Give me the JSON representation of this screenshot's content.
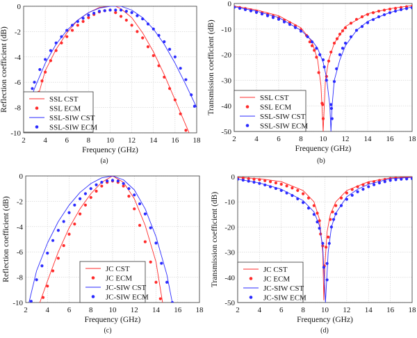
{
  "colors": {
    "red": "#ff2a2a",
    "blue": "#2a2aff",
    "grid": "#cfcfcf"
  },
  "chart_data": [
    {
      "type": "line",
      "caption": "(a)",
      "xlabel": "Frequency (GHz)",
      "ylabel": "Reflection coefficient (dB)",
      "xlim": [
        2,
        18
      ],
      "ylim": [
        -10,
        0
      ],
      "xticks": [
        2,
        4,
        6,
        8,
        10,
        12,
        14,
        16,
        18
      ],
      "yticks": [
        0,
        -2,
        -4,
        -6,
        -8,
        -10
      ],
      "grid": true,
      "legend": "bottom-left",
      "series": [
        {
          "name": "SSL CST",
          "style": "line",
          "color": "red",
          "x": [
            3.3,
            4,
            5,
            6,
            7,
            8,
            9,
            10,
            10.5,
            11,
            12,
            13,
            14,
            15,
            16,
            17,
            17.3
          ],
          "y": [
            -7.2,
            -5.1,
            -3.4,
            -2.1,
            -1.1,
            -0.5,
            -0.1,
            0,
            0,
            -0.2,
            -0.9,
            -2.1,
            -3.6,
            -5.4,
            -7.4,
            -9.4,
            -10
          ]
        },
        {
          "name": "SSL ECM",
          "style": "dots",
          "color": "red",
          "x": [
            3.4,
            3.7,
            4,
            4.5,
            5,
            5.5,
            6,
            6.5,
            7,
            7.5,
            8,
            8.5,
            9,
            9.5,
            10,
            10.5,
            11,
            11.5,
            12,
            12.5,
            13,
            13.5,
            14,
            14.5,
            15,
            15.5,
            16,
            16.5,
            17
          ],
          "y": [
            -6.8,
            -5.9,
            -5.2,
            -4.3,
            -3.5,
            -2.9,
            -2.4,
            -1.9,
            -1.5,
            -1.2,
            -0.9,
            -0.65,
            -0.45,
            -0.35,
            -0.3,
            -0.5,
            -0.8,
            -1.1,
            -1.5,
            -2.0,
            -2.5,
            -3.2,
            -3.9,
            -4.7,
            -5.6,
            -6.5,
            -7.4,
            -8.5,
            -9.8
          ]
        },
        {
          "name": "SSL-SIW CST",
          "style": "line",
          "color": "blue",
          "x": [
            2.8,
            3,
            4,
            5,
            6,
            7,
            8,
            9,
            10,
            11,
            12,
            13,
            14,
            15,
            16,
            17,
            18
          ],
          "y": [
            -7,
            -6.5,
            -4.5,
            -3.0,
            -1.9,
            -1.1,
            -0.5,
            -0.15,
            0,
            0,
            -0.3,
            -0.9,
            -1.8,
            -3.0,
            -4.5,
            -6.2,
            -8.0
          ]
        },
        {
          "name": "SSL-SIW ECM",
          "style": "dots",
          "color": "blue",
          "x": [
            2,
            2.8,
            3,
            3.5,
            4,
            4.5,
            5,
            5.5,
            6,
            6.5,
            7,
            7.5,
            8,
            8.5,
            9,
            9.5,
            10,
            10.5,
            11,
            11.5,
            12,
            12.5,
            13,
            13.5,
            14,
            14.5,
            15,
            15.5,
            16,
            16.5,
            17,
            17.5,
            17.8
          ],
          "y": [
            -9.3,
            -6.5,
            -6.0,
            -5.0,
            -4.2,
            -3.5,
            -2.9,
            -2.4,
            -1.9,
            -1.5,
            -1.2,
            -0.95,
            -0.7,
            -0.55,
            -0.4,
            -0.35,
            -0.3,
            -0.3,
            -0.3,
            -0.4,
            -0.5,
            -0.75,
            -1.0,
            -1.4,
            -1.8,
            -2.3,
            -2.8,
            -3.4,
            -4.0,
            -4.9,
            -5.8,
            -7.0,
            -7.9
          ]
        }
      ]
    },
    {
      "type": "line",
      "caption": "(b)",
      "xlabel": "Frequency (GHz)",
      "ylabel": "Transmission coefficient (dB)",
      "xlim": [
        2,
        18
      ],
      "ylim": [
        -50,
        0
      ],
      "xticks": [
        2,
        4,
        6,
        8,
        10,
        12,
        14,
        16,
        18
      ],
      "yticks": [
        0,
        -10,
        -20,
        -30,
        -40,
        -50
      ],
      "grid": true,
      "legend": "bottom-left",
      "series": [
        {
          "name": "SSL CST",
          "style": "line",
          "color": "red",
          "x": [
            2,
            4,
            6,
            8,
            9,
            9.5,
            9.8,
            10,
            10.2,
            10.5,
            11,
            12,
            14,
            16,
            18
          ],
          "y": [
            -1,
            -2.5,
            -4.8,
            -9.5,
            -15,
            -22,
            -32,
            -50,
            -30,
            -22,
            -15.5,
            -9,
            -4,
            -2,
            -0.8
          ]
        },
        {
          "name": "SSL ECM",
          "style": "dots",
          "color": "red",
          "x": [
            2,
            2.5,
            3,
            3.5,
            4,
            4.5,
            5,
            5.5,
            6,
            6.5,
            7,
            7.5,
            8,
            8.5,
            8.8,
            9,
            9.2,
            9.4,
            9.6,
            9.9,
            9.95,
            10,
            10.3,
            10.5,
            10.7,
            11,
            11.25,
            11.5,
            11.75,
            12,
            12.5,
            13,
            13.5,
            14,
            14.5,
            15,
            15.5,
            16,
            16.5,
            17,
            17.5,
            18
          ],
          "y": [
            -1.3,
            -1.6,
            -2,
            -2.5,
            -3,
            -3.6,
            -4.2,
            -4.9,
            -5.6,
            -6.5,
            -7.5,
            -8.7,
            -10.2,
            -12.5,
            -15,
            -16.5,
            -18.3,
            -21,
            -27,
            -39,
            -39.5,
            -45,
            -28.5,
            -22.5,
            -19,
            -15.5,
            -13.8,
            -12,
            -10.7,
            -9.5,
            -7.7,
            -6.2,
            -5.2,
            -4.3,
            -3.6,
            -3,
            -2.6,
            -2.2,
            -1.9,
            -1.6,
            -1.3,
            -1.1
          ]
        },
        {
          "name": "SSL-SIW CST",
          "style": "line",
          "color": "blue",
          "x": [
            2,
            4,
            6,
            8,
            9,
            9.5,
            10,
            10.3,
            10.6,
            10.7,
            10.8,
            11,
            11.5,
            12,
            13,
            14,
            16,
            18
          ],
          "y": [
            -1.3,
            -3,
            -5.5,
            -10.5,
            -14.5,
            -17.5,
            -23,
            -29,
            -40,
            -50,
            -40,
            -30,
            -22,
            -16.5,
            -10.5,
            -7,
            -3.5,
            -1.3
          ]
        },
        {
          "name": "SSL-SIW ECM",
          "style": "dots",
          "color": "blue",
          "x": [
            2,
            2.5,
            3,
            3.5,
            4,
            4.5,
            5,
            5.5,
            6,
            6.5,
            7,
            7.5,
            8,
            8.6,
            9,
            9.4,
            9.7,
            10,
            10.1,
            10.3,
            10.7,
            10.75,
            10.8,
            11,
            11.2,
            11.5,
            11.75,
            12,
            12.5,
            13,
            13.5,
            14,
            14.5,
            15,
            15.5,
            16,
            16.5,
            17,
            17.5,
            18
          ],
          "y": [
            -1.5,
            -1.9,
            -2.4,
            -2.9,
            -3.5,
            -4.1,
            -4.8,
            -5.5,
            -6.2,
            -7.2,
            -8.2,
            -9.4,
            -10.8,
            -13,
            -15,
            -17.5,
            -20,
            -22,
            -24.8,
            -30,
            -39.5,
            -41,
            -45,
            -30.5,
            -25.5,
            -20,
            -17.5,
            -15.5,
            -13,
            -10.5,
            -9,
            -7.5,
            -6.3,
            -5.2,
            -4.4,
            -3.6,
            -3,
            -2.4,
            -2,
            -1.7
          ]
        }
      ]
    },
    {
      "type": "line",
      "caption": "(c)",
      "xlabel": "Frequency (GHz)",
      "ylabel": "Reflection coefficient (dB)",
      "xlim": [
        2,
        18
      ],
      "ylim": [
        -10,
        0
      ],
      "xticks": [
        2,
        4,
        6,
        8,
        10,
        12,
        14,
        16,
        18
      ],
      "yticks": [
        0,
        -2,
        -4,
        -6,
        -8,
        -10
      ],
      "grid": true,
      "legend": "bottom-center",
      "series": [
        {
          "name": "JC CST",
          "style": "line",
          "color": "red",
          "x": [
            3.3,
            4,
            5,
            6,
            7,
            8,
            9,
            10,
            11,
            12,
            13,
            14,
            14.6
          ],
          "y": [
            -10,
            -8.3,
            -6.0,
            -4.1,
            -2.6,
            -1.4,
            -0.5,
            0,
            -0.5,
            -1.8,
            -3.9,
            -6.8,
            -10
          ]
        },
        {
          "name": "JC ECM",
          "style": "dots",
          "color": "red",
          "x": [
            3.6,
            4,
            4.5,
            5,
            5.5,
            6,
            6.5,
            7,
            7.5,
            8,
            8.5,
            9,
            9.5,
            10,
            10.5,
            11,
            11.5,
            12,
            12.5,
            13,
            13.5,
            14,
            14.4
          ],
          "y": [
            -9.6,
            -8.7,
            -7.5,
            -6.5,
            -5.5,
            -4.6,
            -3.8,
            -3.0,
            -2.3,
            -1.7,
            -1.2,
            -0.8,
            -0.5,
            -0.4,
            -0.5,
            -0.8,
            -1.6,
            -2.6,
            -3.9,
            -5.2,
            -6.8,
            -8.4,
            -9.7
          ]
        },
        {
          "name": "JC-SIW CST",
          "style": "line",
          "color": "blue",
          "x": [
            2.3,
            3,
            4,
            5,
            6,
            7,
            8,
            9,
            10,
            11,
            12,
            13,
            14,
            15,
            15.5
          ],
          "y": [
            -10,
            -7.5,
            -5.3,
            -3.6,
            -2.3,
            -1.3,
            -0.6,
            -0.15,
            0,
            -0.3,
            -1.1,
            -2.6,
            -4.8,
            -7.8,
            -10
          ]
        },
        {
          "name": "JC-SIW ECM",
          "style": "dots",
          "color": "blue",
          "x": [
            2.5,
            3,
            3.5,
            4,
            4.5,
            5,
            5.5,
            6,
            6.5,
            7,
            7.5,
            8,
            8.5,
            9,
            9.5,
            10,
            10.5,
            11,
            11.5,
            12,
            12.5,
            13,
            13.5,
            14,
            14.5,
            15,
            15.5
          ],
          "y": [
            -9.9,
            -8.2,
            -7.1,
            -6.1,
            -5.1,
            -4.3,
            -3.6,
            -2.9,
            -2.3,
            -1.8,
            -1.4,
            -1.0,
            -0.7,
            -0.5,
            -0.4,
            -0.35,
            -0.4,
            -0.6,
            -1.0,
            -1.5,
            -2.2,
            -3.0,
            -4.1,
            -5.3,
            -6.9,
            -8.4,
            -10
          ]
        }
      ]
    },
    {
      "type": "line",
      "caption": "(d)",
      "xlabel": "Frequency (GHz)",
      "ylabel": "Transmission coefficient (dB)",
      "xlim": [
        2,
        18
      ],
      "ylim": [
        -50,
        0
      ],
      "xticks": [
        2,
        4,
        6,
        8,
        10,
        12,
        14,
        16,
        18
      ],
      "yticks": [
        0,
        -10,
        -20,
        -30,
        -40,
        -50
      ],
      "grid": true,
      "legend": "bottom-left",
      "series": [
        {
          "name": "JC CST",
          "style": "line",
          "color": "red",
          "x": [
            2,
            4,
            6,
            8,
            9,
            9.5,
            9.8,
            9.9,
            10,
            10.2,
            10.5,
            11,
            12,
            14,
            16,
            18
          ],
          "y": [
            -0.3,
            -0.8,
            -2,
            -5.5,
            -10,
            -17,
            -30,
            -49,
            -35,
            -22,
            -15,
            -10,
            -5.5,
            -2,
            -0.5,
            -0.1
          ]
        },
        {
          "name": "JC ECM",
          "style": "dots",
          "color": "red",
          "x": [
            2,
            2.5,
            3,
            3.5,
            4,
            4.5,
            5,
            5.5,
            6,
            6.5,
            7,
            7.5,
            8,
            8.5,
            9,
            9.3,
            9.5,
            9.6,
            9.8,
            9.95,
            10.1,
            10.3,
            10.5,
            10.7,
            11,
            11.5,
            12,
            12.5,
            13,
            13.5,
            14,
            14.5,
            15,
            15.5,
            16,
            16.5,
            17,
            17.5,
            18
          ],
          "y": [
            -0.5,
            -0.6,
            -0.8,
            -1,
            -1.2,
            -1.6,
            -2,
            -2.5,
            -3,
            -3.7,
            -4.5,
            -5.5,
            -6.8,
            -8.5,
            -11.5,
            -14.5,
            -17.5,
            -22.8,
            -27.5,
            -35.5,
            -28,
            -24,
            -17,
            -14,
            -11.5,
            -8.5,
            -6.5,
            -5.1,
            -4,
            -3.2,
            -2.5,
            -2,
            -1.5,
            -1.1,
            -0.8,
            -0.6,
            -0.5,
            -0.45,
            -0.4
          ]
        },
        {
          "name": "JC-SIW CST",
          "style": "line",
          "color": "blue",
          "x": [
            2,
            4,
            6,
            8,
            9,
            9.5,
            9.8,
            10.05,
            10.3,
            10.6,
            11,
            12,
            13,
            14,
            16,
            18
          ],
          "y": [
            -1,
            -2.5,
            -5,
            -9.5,
            -14,
            -19.5,
            -28,
            -50,
            -30,
            -20,
            -14.5,
            -8,
            -5,
            -3,
            -0.8,
            -0.3
          ]
        },
        {
          "name": "JC-SIW ECM",
          "style": "dots",
          "color": "blue",
          "x": [
            2,
            2.5,
            3,
            3.5,
            4,
            4.5,
            5,
            5.5,
            6,
            6.5,
            7,
            7.5,
            8,
            8.5,
            9,
            9.3,
            9.5,
            9.8,
            9.9,
            10.2,
            10.2,
            10.4,
            10.6,
            10.8,
            11,
            11.5,
            12,
            12.5,
            13,
            13.5,
            14,
            14.5,
            15,
            15.5,
            16,
            16.5,
            17,
            17.5,
            18
          ],
          "y": [
            -1,
            -1.4,
            -1.8,
            -2.2,
            -2.7,
            -3.3,
            -4,
            -4.7,
            -5.5,
            -6.5,
            -7.5,
            -8.8,
            -10.3,
            -12.5,
            -15,
            -18,
            -20.5,
            -26.5,
            -36,
            -41,
            -34.5,
            -26.5,
            -20,
            -17,
            -14.8,
            -11.5,
            -9,
            -7.4,
            -6,
            -5,
            -4,
            -3.2,
            -2.5,
            -2,
            -1.5,
            -1.2,
            -1,
            -0.9,
            -0.8
          ]
        }
      ]
    }
  ]
}
